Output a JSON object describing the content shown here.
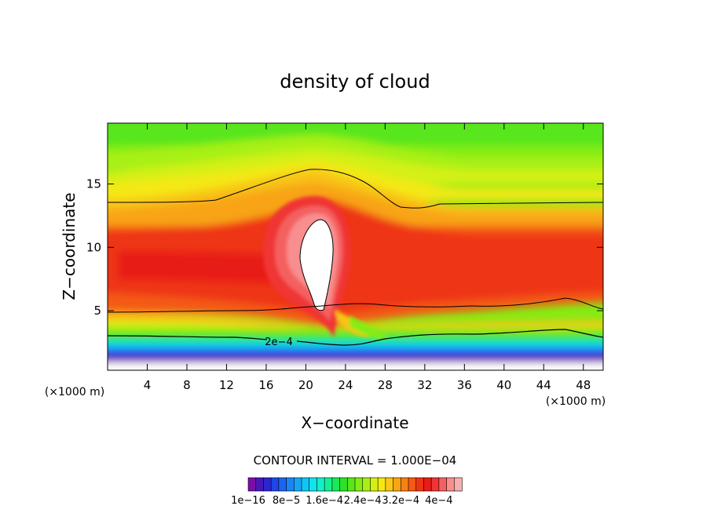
{
  "chart_data": {
    "type": "heatmap",
    "title": "density of cloud",
    "xlabel": "X−coordinate",
    "ylabel": "Z−coordinate",
    "x_unit_left": "(×1000 m)",
    "x_unit_right": "(×1000 m)",
    "xlim": [
      0,
      50
    ],
    "ylim": [
      0.3,
      19.8
    ],
    "xticks": [
      4,
      8,
      12,
      16,
      20,
      24,
      28,
      32,
      36,
      40,
      44,
      48
    ],
    "yticks": [
      5,
      10,
      15
    ],
    "contour_interval_text": "CONTOUR INTERVAL = 1.000E−04",
    "contour_label": "2e−4",
    "colorbar": {
      "ticklabels": [
        "1e−16",
        "8e−5",
        "1.6e−4",
        "2.4e−4",
        "3.2e−4",
        "4e−4"
      ],
      "colors": [
        "#7a0fa8",
        "#4a16b8",
        "#2a26d2",
        "#1e46ea",
        "#1a64f2",
        "#1c84f0",
        "#18a4f4",
        "#10c6f4",
        "#10e4ee",
        "#14f0c8",
        "#16f094",
        "#18e85a",
        "#2ce228",
        "#58e61a",
        "#84ec14",
        "#a8f014",
        "#d4f012",
        "#f4e812",
        "#f8c814",
        "#f8a414",
        "#f88014",
        "#f45a14",
        "#ee3414",
        "#e81c18",
        "#f03434",
        "#f46060",
        "#f88e8e",
        "#f8aeae"
      ]
    },
    "zones": [
      {
        "level": "4e-4+",
        "x": [
          19.3,
          23.1
        ],
        "z": [
          4.8,
          12.2
        ],
        "color": "#ffffff"
      },
      {
        "level": "3.2e-4",
        "x": [
          16,
          26
        ],
        "z": [
          4,
          15
        ],
        "color": "#ee3414"
      },
      {
        "level": "2e-4",
        "x": [
          0,
          50
        ],
        "z": [
          3,
          13.5
        ],
        "color": "#f4580f"
      },
      {
        "level": "1.6e-4",
        "x": [
          0,
          50
        ],
        "z": [
          13.5,
          15.5
        ],
        "color": "#f8c414"
      },
      {
        "level": "8e-5",
        "x": [
          0,
          50
        ],
        "z": [
          16,
          19.8
        ],
        "color": "#84ec14"
      }
    ]
  }
}
